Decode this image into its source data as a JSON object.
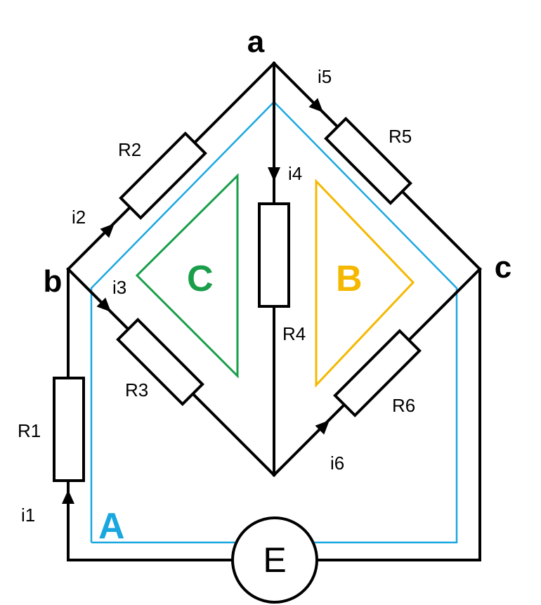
{
  "nodes": {
    "a": "a",
    "b": "b",
    "c": "c"
  },
  "resistors": {
    "r1": "R1",
    "r2": "R2",
    "r3": "R3",
    "r4": "R4",
    "r5": "R5",
    "r6": "R6"
  },
  "currents": {
    "i1": "i1",
    "i2": "i2",
    "i3": "i3",
    "i4": "i4",
    "i5": "i5",
    "i6": "i6"
  },
  "source": "E",
  "loops": {
    "A": {
      "label": "A",
      "color": "#1aa7e0"
    },
    "B": {
      "label": "B",
      "color": "#f5b800"
    },
    "C": {
      "label": "C",
      "color": "#1a9e4a"
    }
  }
}
